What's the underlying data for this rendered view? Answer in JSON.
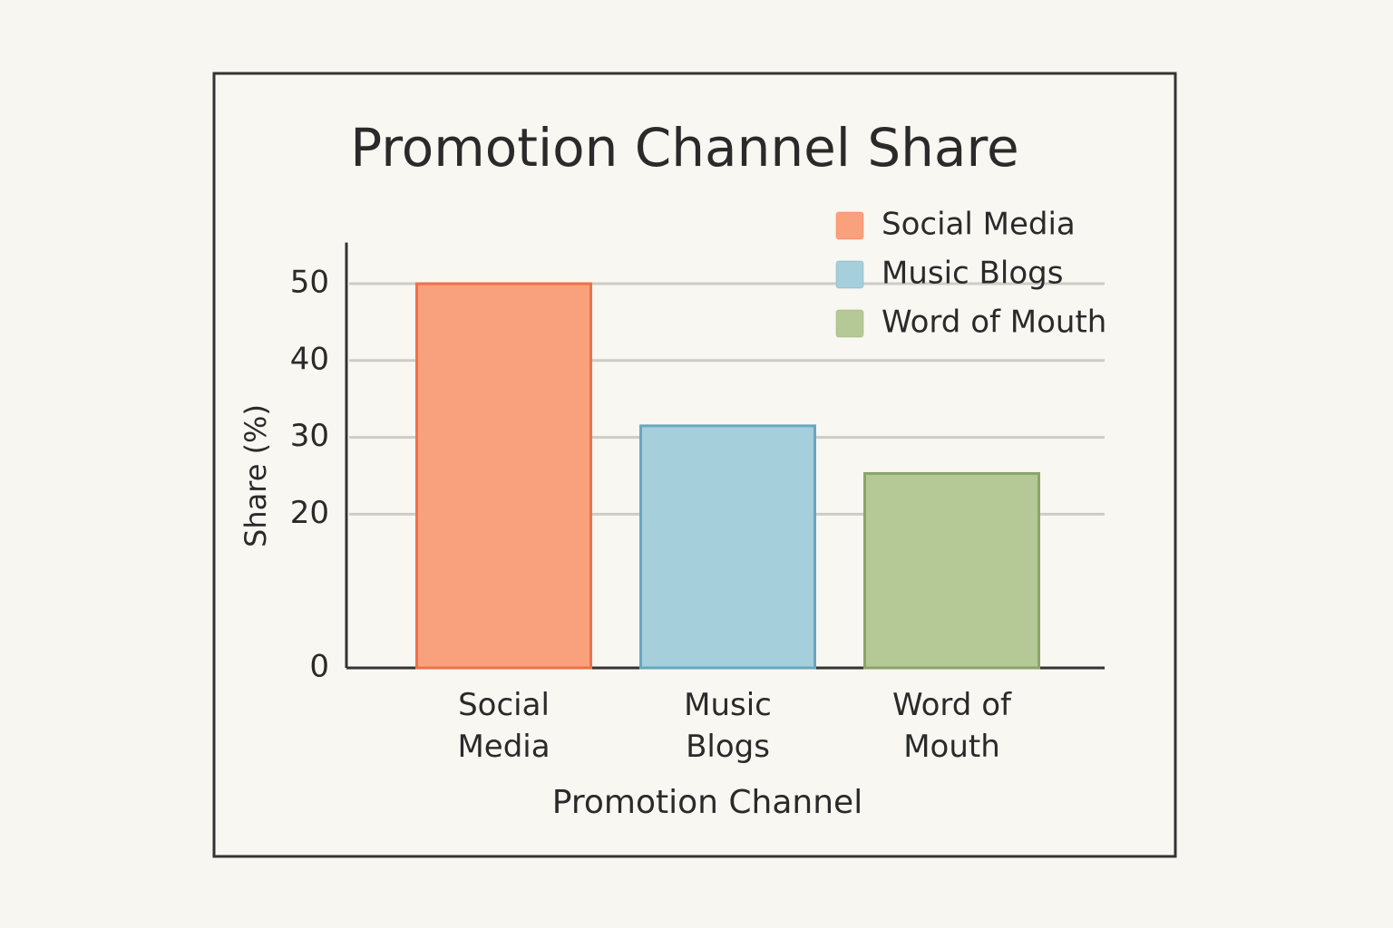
{
  "chart_data": {
    "type": "bar",
    "title": "Promotion Channel Share",
    "x_label": "Promotion Channel",
    "y_label": "Share (%)",
    "categories": [
      "Social Media",
      "Music Blogs",
      "Word of Mouth"
    ],
    "values": [
      50,
      31.5,
      25.3
    ],
    "colors": [
      "#f9a07c",
      "#a6cfdc",
      "#b5c996"
    ],
    "edgecolors": [
      "#f07048",
      "#6aa6bf",
      "#8aa56a"
    ],
    "ylim": [
      0,
      55
    ],
    "yticks": [
      0,
      20,
      30,
      40,
      50
    ],
    "grid": true,
    "legend": "upper right"
  }
}
